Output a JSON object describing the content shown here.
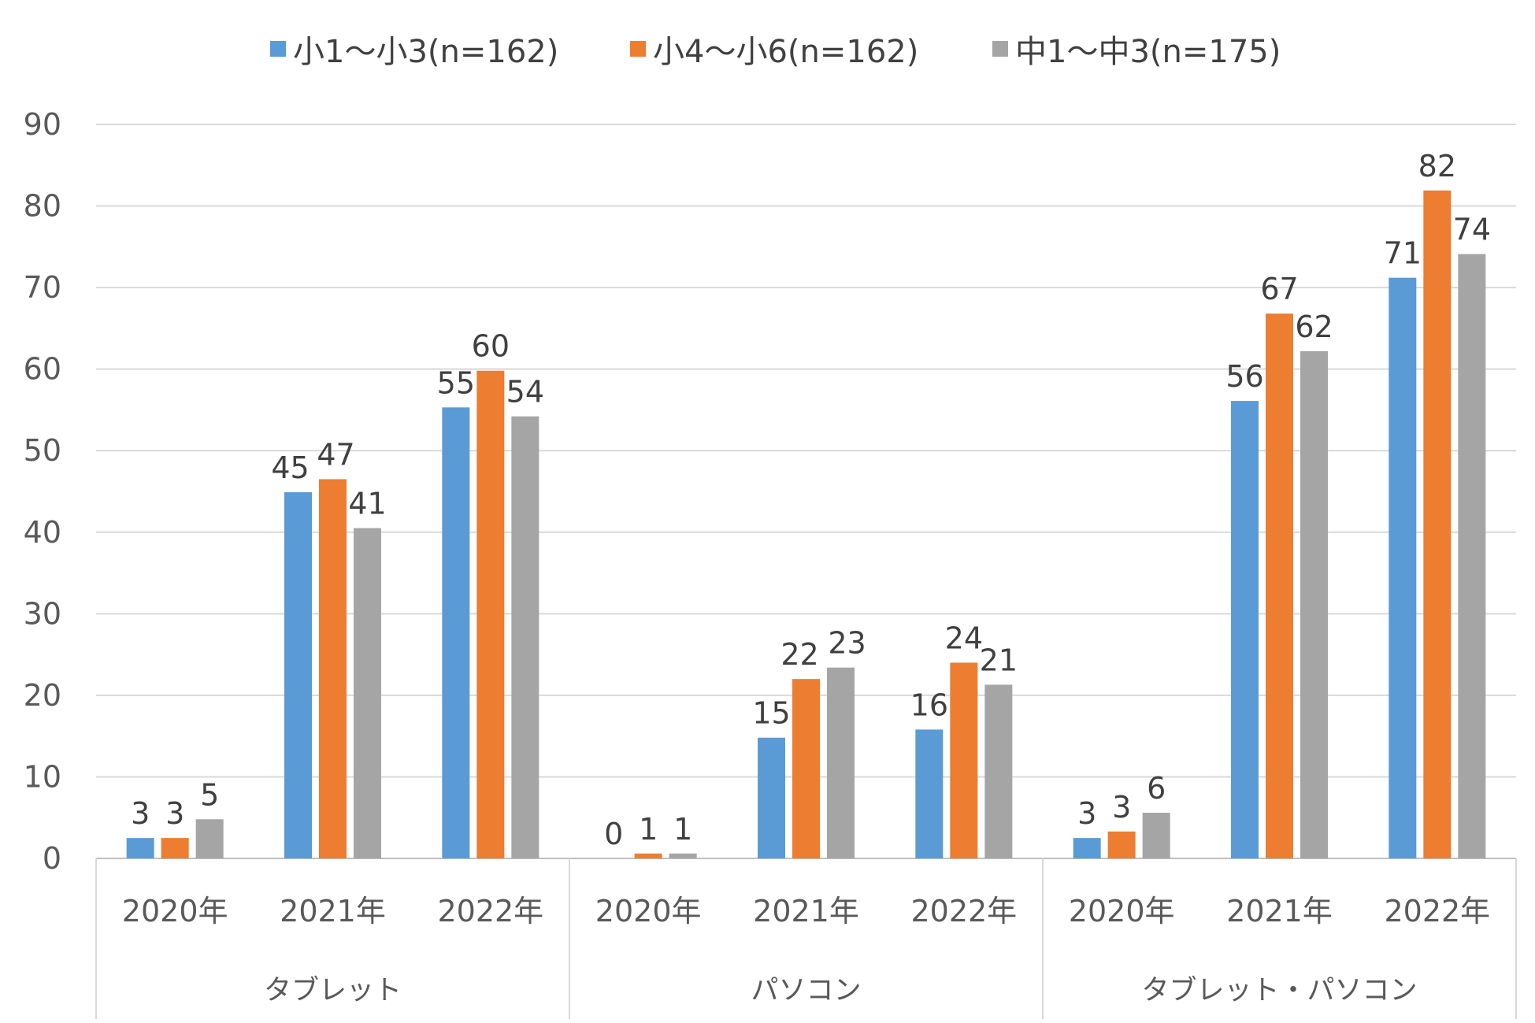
{
  "chart_data": {
    "type": "bar",
    "title": "",
    "xlabel": "",
    "ylabel": "",
    "ylim": [
      0,
      90
    ],
    "yticks": [
      0,
      10,
      20,
      30,
      40,
      50,
      60,
      70,
      80,
      90
    ],
    "grid": true,
    "legend_position": "top",
    "groups": [
      {
        "label": "タブレット",
        "categories": [
          "2020年",
          "2021年",
          "2022年"
        ]
      },
      {
        "label": "パソコン",
        "categories": [
          "2020年",
          "2021年",
          "2022年"
        ]
      },
      {
        "label": "タブレット・パソコン",
        "categories": [
          "2020年",
          "2021年",
          "2022年"
        ]
      }
    ],
    "series": [
      {
        "name": "小1～小3(n=162)",
        "color": "#5B9BD5",
        "values": [
          2.5,
          44.9,
          55.3,
          0,
          14.8,
          15.8,
          2.5,
          56.1,
          71.2
        ],
        "labels": [
          "3",
          "45",
          "55",
          "0",
          "15",
          "16",
          "3",
          "56",
          "71"
        ]
      },
      {
        "name": "小4～小6(n=162)",
        "color": "#ED7D31",
        "values": [
          2.5,
          46.5,
          59.8,
          0.6,
          22.0,
          24.0,
          3.3,
          66.8,
          81.9
        ],
        "labels": [
          "3",
          "47",
          "60",
          "1",
          "22",
          "24",
          "3",
          "67",
          "82"
        ]
      },
      {
        "name": "中1～中3(n=175)",
        "color": "#A5A5A5",
        "values": [
          4.8,
          40.5,
          54.2,
          0.6,
          23.4,
          21.3,
          5.6,
          62.2,
          74.1
        ],
        "labels": [
          "5",
          "41",
          "54",
          "1",
          "23",
          "21",
          "6",
          "62",
          "74"
        ]
      }
    ]
  }
}
